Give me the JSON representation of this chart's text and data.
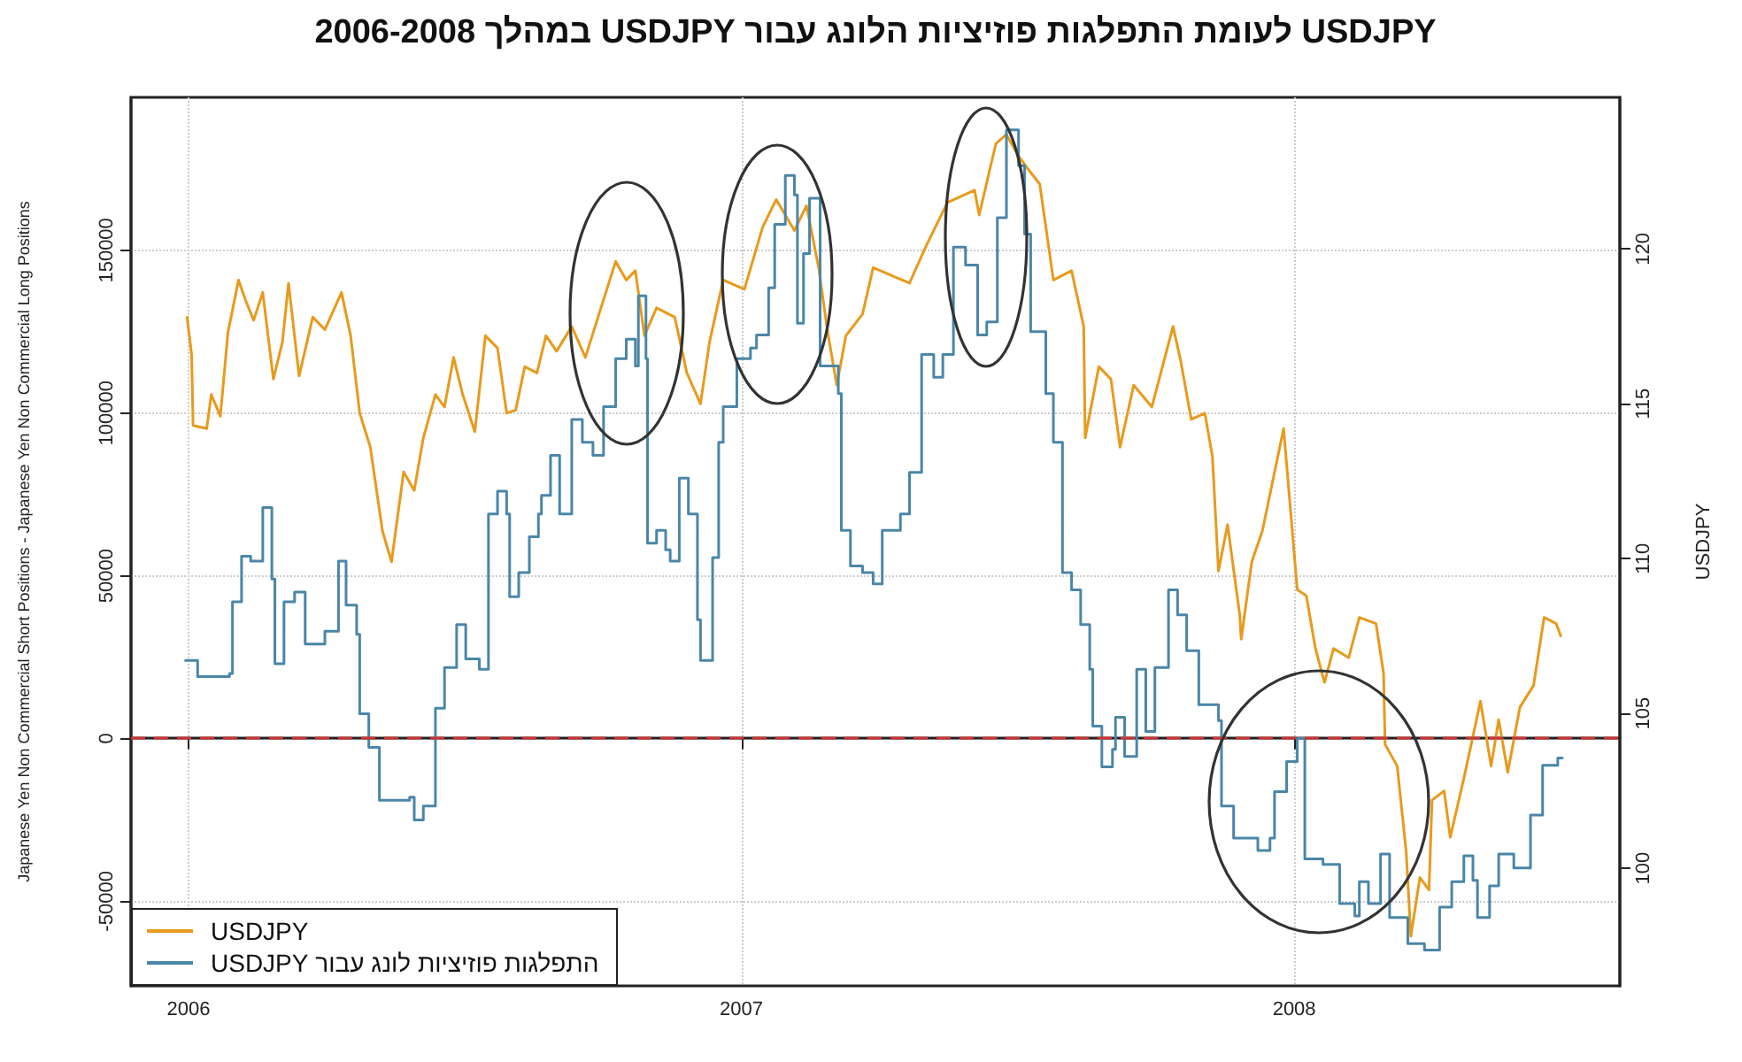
{
  "chart_data": {
    "type": "line",
    "title": "USDJPY לעומת התפלגות פוזיציות הלונג עבור USDJPY במהלך 2006-2008",
    "ylabel": "Japanese Yen Non Commercial Short Positions - Japanese Yen Non Commercial Long Positions",
    "y2label": "USDJPY",
    "xlim": [
      "2005-11-24",
      "2008-08-03"
    ],
    "xticks": [
      {
        "value": "2006-01-01",
        "label": "2006"
      },
      {
        "value": "2007-01-01",
        "label": "2007"
      },
      {
        "value": "2008-01-01",
        "label": "2008"
      }
    ],
    "ylim": [
      -76000,
      197000
    ],
    "yticks": [
      -50000,
      0,
      50000,
      100000,
      150000
    ],
    "y2lim": [
      96.2,
      124.9
    ],
    "y2ticks": [
      100,
      105,
      110,
      115,
      120
    ],
    "grid": true,
    "legend": "bottom left",
    "marker": "none",
    "line_style": "solid",
    "ref_lines": [
      {
        "axis": "y",
        "value": 0,
        "color": "#cc3333",
        "line_style": "dashed"
      }
    ],
    "series": [
      {
        "name": "USDJPY",
        "type": "line",
        "axis": "y2",
        "color": "#e89a1c",
        "x": [
          "2005-12-31",
          "2006-01-03",
          "2006-01-04",
          "2006-01-13",
          "2006-01-16",
          "2006-01-22",
          "2006-01-27",
          "2006-02-03",
          "2006-02-08",
          "2006-02-13",
          "2006-02-19",
          "2006-02-26",
          "2006-03-04",
          "2006-03-08",
          "2006-03-15",
          "2006-03-24",
          "2006-04-01",
          "2006-04-12",
          "2006-04-18",
          "2006-04-24",
          "2006-05-01",
          "2006-05-09",
          "2006-05-15",
          "2006-05-23",
          "2006-05-30",
          "2006-06-05",
          "2006-06-13",
          "2006-06-19",
          "2006-06-25",
          "2006-07-01",
          "2006-07-09",
          "2006-07-16",
          "2006-07-24",
          "2006-07-30",
          "2006-08-05",
          "2006-08-11",
          "2006-08-19",
          "2006-08-25",
          "2006-09-01",
          "2006-09-11",
          "2006-09-20",
          "2006-09-29",
          "2006-10-10",
          "2006-10-17",
          "2006-10-23",
          "2006-10-29",
          "2006-11-06",
          "2006-11-18",
          "2006-11-26",
          "2006-12-05",
          "2006-12-11",
          "2006-12-20",
          "2007-01-03",
          "2007-01-15",
          "2007-01-24",
          "2007-02-05",
          "2007-02-13",
          "2007-02-21",
          "2007-02-27",
          "2007-03-05",
          "2007-03-11",
          "2007-03-22",
          "2007-03-29",
          "2007-04-22",
          "2007-05-03",
          "2007-05-17",
          "2007-06-04",
          "2007-06-07",
          "2007-06-18",
          "2007-06-25",
          "2007-07-03",
          "2007-07-09",
          "2007-07-17",
          "2007-07-26",
          "2007-08-07",
          "2007-08-15",
          "2007-08-16",
          "2007-08-25",
          "2007-09-02",
          "2007-09-08",
          "2007-09-17",
          "2007-09-29",
          "2007-10-13",
          "2007-10-18",
          "2007-10-25",
          "2007-11-03",
          "2007-11-08",
          "2007-11-12",
          "2007-11-18",
          "2007-11-26",
          "2007-11-27",
          "2007-12-04",
          "2007-12-11",
          "2007-12-25",
          "2008-01-03",
          "2008-01-09",
          "2008-01-15",
          "2008-01-21",
          "2008-01-27",
          "2008-02-06",
          "2008-02-13",
          "2008-02-24",
          "2008-02-29",
          "2008-03-01",
          "2008-03-09",
          "2008-03-15",
          "2008-03-18",
          "2008-03-24",
          "2008-03-30",
          "2008-04-01",
          "2008-04-09",
          "2008-04-13",
          "2008-04-22",
          "2008-05-03",
          "2008-05-10",
          "2008-05-15",
          "2008-05-21",
          "2008-05-29",
          "2008-06-07",
          "2008-06-14",
          "2008-06-22",
          "2008-06-25"
        ],
        "values": [
          117.8,
          116.6,
          114.3,
          114.2,
          115.3,
          114.6,
          117.3,
          119.0,
          118.3,
          117.7,
          118.6,
          115.8,
          117.0,
          118.9,
          115.9,
          117.8,
          117.4,
          118.6,
          117.2,
          114.7,
          113.6,
          110.9,
          109.9,
          112.8,
          112.2,
          113.9,
          115.3,
          114.9,
          116.5,
          115.3,
          114.1,
          117.2,
          116.8,
          114.7,
          114.8,
          116.2,
          116.0,
          117.2,
          116.7,
          117.5,
          116.5,
          117.9,
          119.6,
          119.0,
          119.3,
          117.2,
          118.1,
          117.8,
          116.0,
          115.0,
          117.0,
          119.0,
          118.7,
          120.7,
          121.6,
          120.6,
          121.4,
          119.4,
          117.3,
          115.6,
          117.2,
          117.9,
          119.4,
          118.9,
          120.1,
          121.5,
          121.9,
          121.1,
          123.4,
          123.7,
          123.0,
          122.6,
          122.1,
          119.0,
          119.3,
          117.5,
          113.9,
          116.2,
          115.8,
          113.6,
          115.6,
          114.9,
          117.5,
          116.4,
          114.5,
          114.7,
          113.3,
          109.6,
          111.1,
          108.2,
          107.4,
          109.9,
          110.9,
          114.2,
          109.0,
          108.8,
          107.1,
          106.0,
          107.1,
          106.8,
          108.1,
          107.9,
          106.3,
          104.0,
          103.3,
          100.5,
          97.8,
          99.7,
          99.3,
          102.2,
          102.5,
          101.0,
          102.9,
          105.4,
          103.3,
          104.8,
          103.1,
          105.2,
          105.9,
          108.1,
          107.9,
          107.5
        ]
      },
      {
        "name": "התפלגות פוזיציות לונג עבור USDJPY",
        "type": "step",
        "color": "#4a86a8",
        "x": [
          "2005-12-30",
          "2006-01-07",
          "2006-01-28",
          "2006-01-30",
          "2006-02-05",
          "2006-02-11",
          "2006-02-19",
          "2006-02-25",
          "2006-02-27",
          "2006-03-05",
          "2006-03-12",
          "2006-03-19",
          "2006-04-01",
          "2006-04-10",
          "2006-04-15",
          "2006-04-22",
          "2006-04-24",
          "2006-04-30",
          "2006-05-07",
          "2006-05-27",
          "2006-05-30",
          "2006-06-05",
          "2006-06-13",
          "2006-06-19",
          "2006-06-27",
          "2006-07-03",
          "2006-07-12",
          "2006-07-18",
          "2006-07-24",
          "2006-07-30",
          "2006-08-01",
          "2006-08-07",
          "2006-08-14",
          "2006-08-20",
          "2006-08-22",
          "2006-08-28",
          "2006-09-03",
          "2006-09-11",
          "2006-09-18",
          "2006-09-25",
          "2006-10-02",
          "2006-10-10",
          "2006-10-17",
          "2006-10-23",
          "2006-10-25",
          "2006-10-30",
          "2006-10-31",
          "2006-11-06",
          "2006-11-12",
          "2006-11-15",
          "2006-11-21",
          "2006-11-27",
          "2006-12-03",
          "2006-12-05",
          "2006-12-13",
          "2006-12-17",
          "2006-12-20",
          "2006-12-29",
          "2007-01-07",
          "2007-01-11",
          "2007-01-19",
          "2007-01-23",
          "2007-01-30",
          "2007-02-05",
          "2007-02-07",
          "2007-02-11",
          "2007-02-15",
          "2007-02-22",
          "2007-03-06",
          "2007-03-08",
          "2007-03-14",
          "2007-03-22",
          "2007-03-29",
          "2007-04-04",
          "2007-04-16",
          "2007-04-22",
          "2007-04-30",
          "2007-05-08",
          "2007-05-14",
          "2007-05-21",
          "2007-05-29",
          "2007-06-06",
          "2007-06-12",
          "2007-06-19",
          "2007-06-25",
          "2007-07-03",
          "2007-07-07",
          "2007-07-11",
          "2007-07-21",
          "2007-07-26",
          "2007-08-01",
          "2007-08-07",
          "2007-08-13",
          "2007-08-19",
          "2007-08-21",
          "2007-08-27",
          "2007-09-03",
          "2007-09-05",
          "2007-09-11",
          "2007-09-19",
          "2007-09-25",
          "2007-10-01",
          "2007-10-10",
          "2007-10-16",
          "2007-10-22",
          "2007-10-30",
          "2007-11-12",
          "2007-11-14",
          "2007-11-22",
          "2007-12-08",
          "2007-12-16",
          "2007-12-19",
          "2007-12-27",
          "2008-01-03",
          "2008-01-08",
          "2008-01-20",
          "2008-01-31",
          "2008-02-10",
          "2008-02-13",
          "2008-02-19",
          "2008-02-27",
          "2008-03-04",
          "2008-03-16",
          "2008-03-27",
          "2008-04-06",
          "2008-04-14",
          "2008-04-22",
          "2008-04-28",
          "2008-05-01",
          "2008-05-09",
          "2008-05-15",
          "2008-05-25",
          "2008-06-05",
          "2008-06-13",
          "2008-06-23",
          "2008-06-26"
        ],
        "values": [
          24000,
          19000,
          20000,
          42000,
          56000,
          54500,
          71000,
          49000,
          23000,
          42000,
          45000,
          29000,
          33000,
          54500,
          41000,
          32000,
          7600,
          -2700,
          -19000,
          -18000,
          -25000,
          -20700,
          9300,
          21800,
          35000,
          24500,
          21300,
          69000,
          76000,
          69000,
          43600,
          51000,
          62000,
          69000,
          74700,
          87000,
          69000,
          98000,
          91000,
          87000,
          102000,
          116700,
          122700,
          114500,
          136000,
          116700,
          60000,
          64000,
          58000,
          54500,
          80000,
          69000,
          36500,
          24000,
          55600,
          91000,
          102000,
          116700,
          120000,
          124000,
          138500,
          158000,
          173000,
          167000,
          127600,
          149000,
          166000,
          114500,
          106000,
          64000,
          53000,
          51000,
          47500,
          64000,
          69000,
          81800,
          118000,
          111000,
          118000,
          151000,
          145500,
          124000,
          128000,
          160000,
          187000,
          176000,
          155000,
          125000,
          106000,
          91000,
          51000,
          45700,
          35000,
          21300,
          3800,
          -8700,
          -3300,
          6500,
          -5500,
          21300,
          2200,
          21800,
          45700,
          38000,
          27000,
          10400,
          5500,
          -20700,
          -30600,
          -34400,
          -30600,
          -16300,
          -7100,
          0,
          -37000,
          -38700,
          -50700,
          -54500,
          -44000,
          -50700,
          -35500,
          -55000,
          -63000,
          -65000,
          -51800,
          -44000,
          -36000,
          -43600,
          -55000,
          -45300,
          -35500,
          -39800,
          -23500,
          -8200,
          -6000,
          -6000
        ]
      }
    ]
  }
}
